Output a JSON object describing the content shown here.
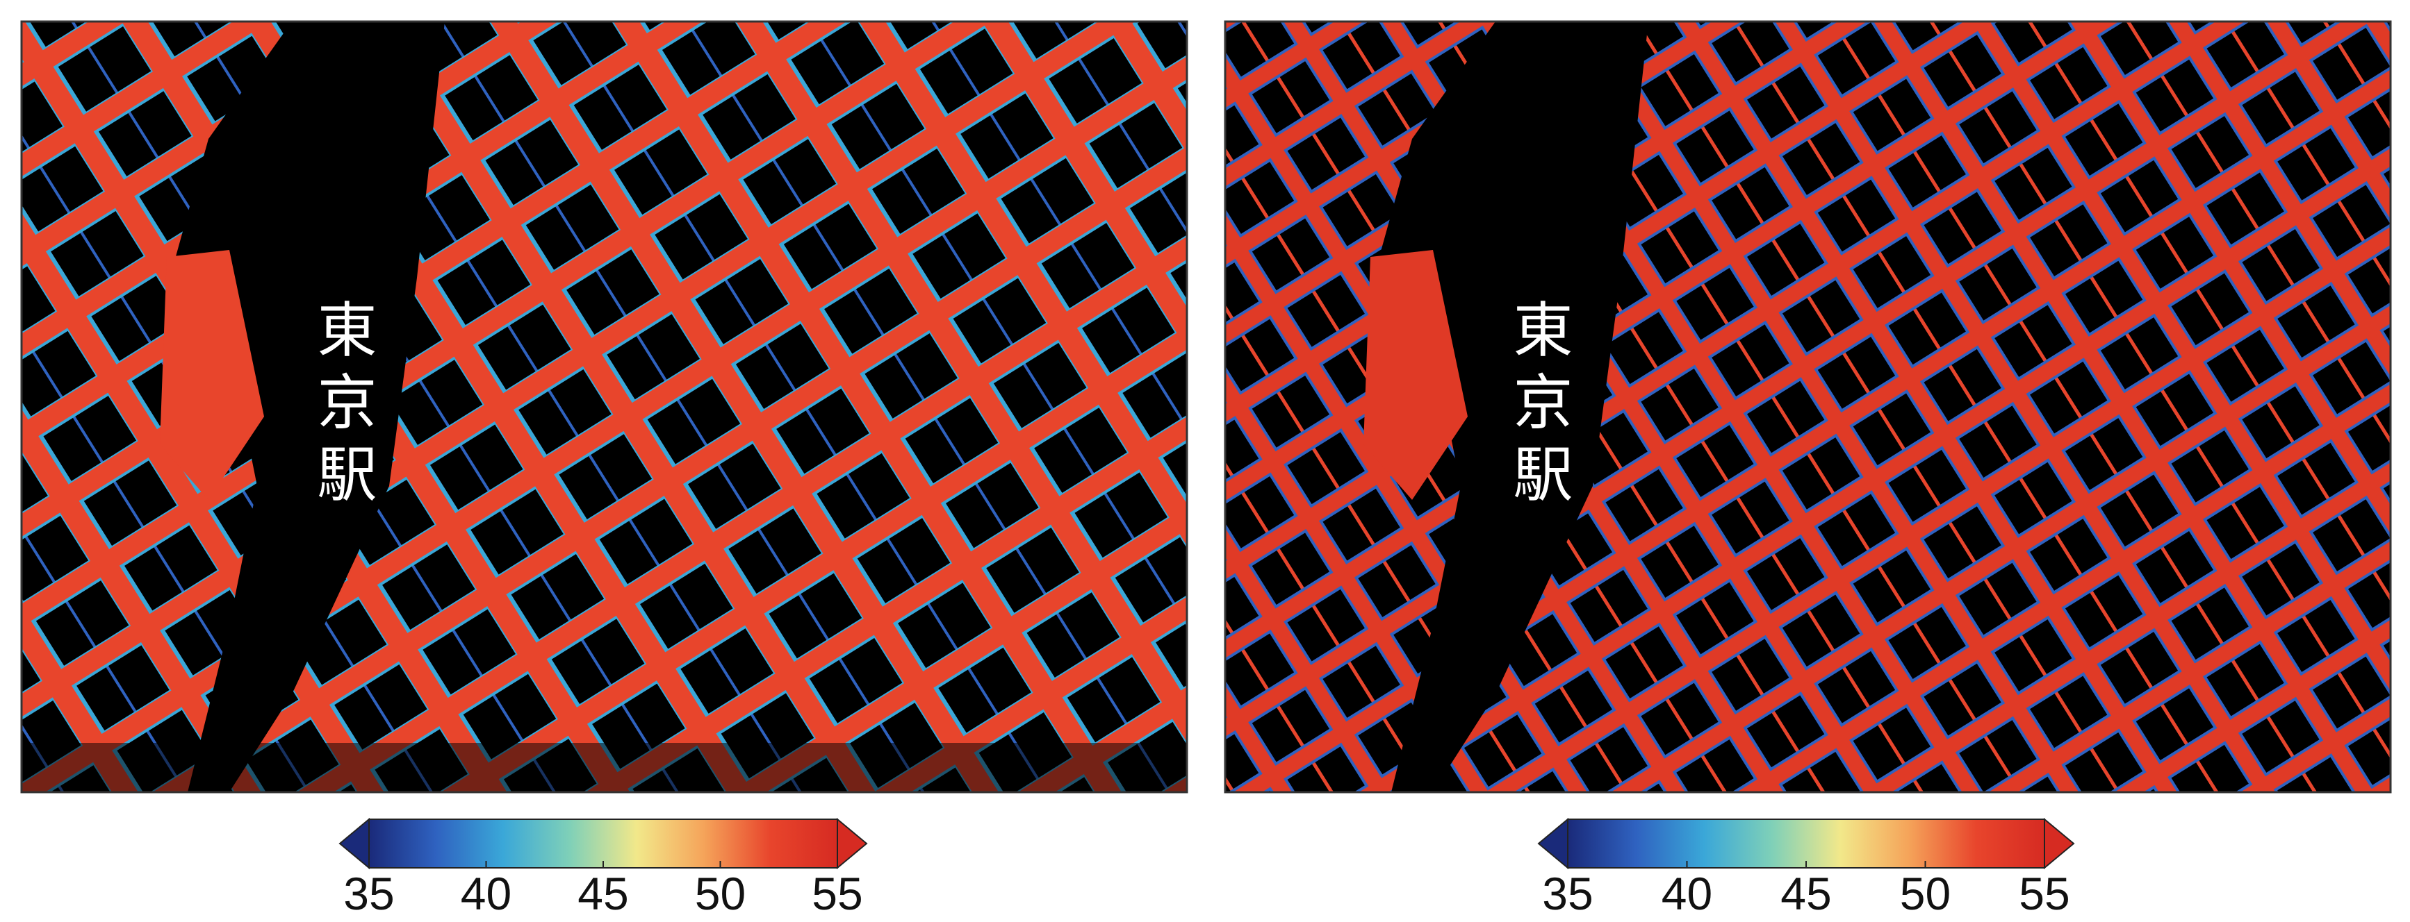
{
  "panels": [
    {
      "label": "東京駅",
      "colorbar": {
        "lim": [
          35,
          55
        ],
        "ticks": [
          35,
          40,
          45,
          50,
          55
        ],
        "colors": [
          "#1a2a7a",
          "#2f62c0",
          "#3aa7d8",
          "#7fd0b8",
          "#f2e88a",
          "#f5a45a",
          "#e8452c",
          "#d62b22"
        ]
      }
    },
    {
      "label": "東京駅",
      "colorbar": {
        "lim": [
          35,
          55
        ],
        "ticks": [
          35,
          40,
          45,
          50,
          55
        ],
        "colors": [
          "#1a2a7a",
          "#2f62c0",
          "#3aa7d8",
          "#7fd0b8",
          "#f2e88a",
          "#f5a45a",
          "#e8452c",
          "#d62b22"
        ]
      }
    }
  ]
}
